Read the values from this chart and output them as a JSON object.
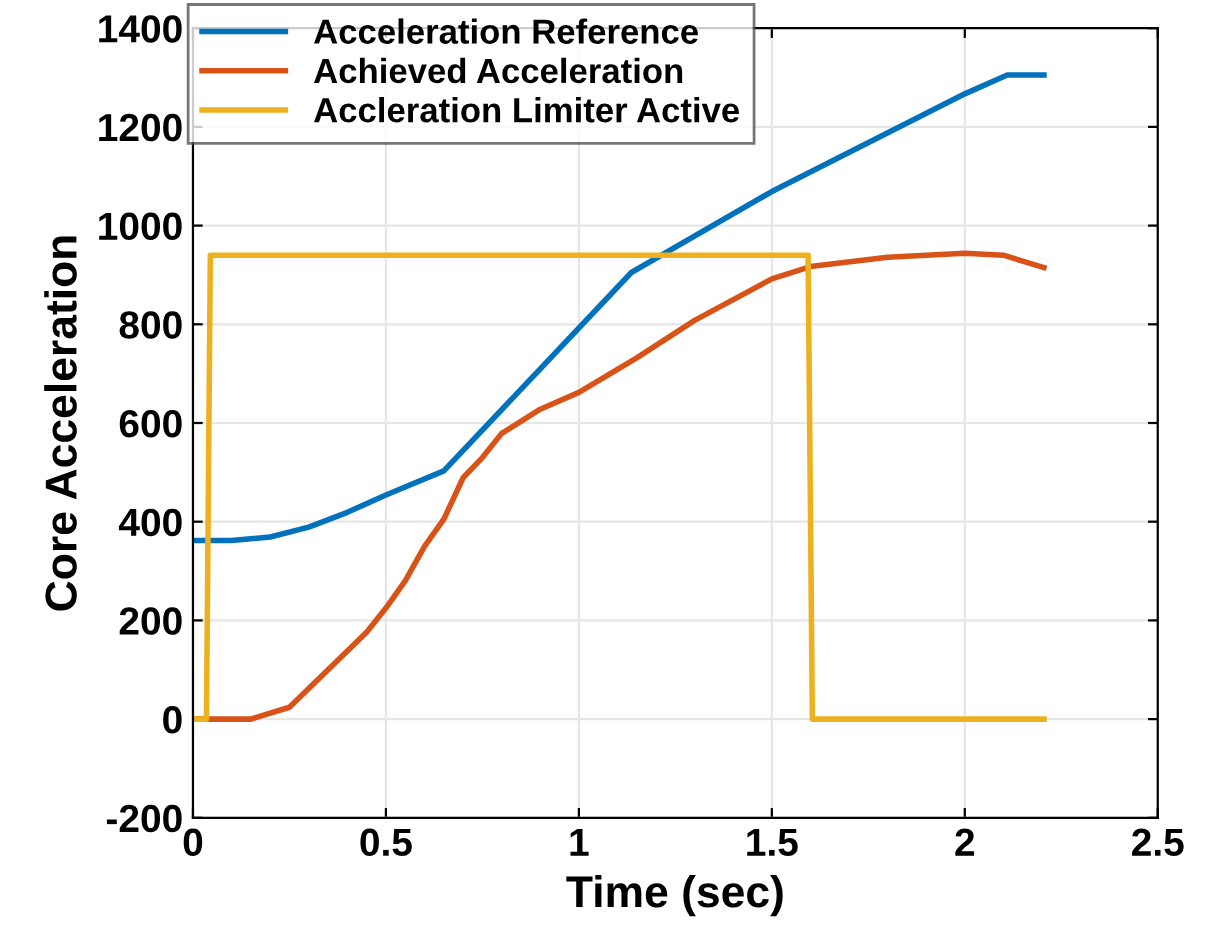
{
  "chart_data": {
    "type": "line",
    "xlabel": "Time (sec)",
    "ylabel": "Core Acceleration",
    "xlim": [
      0,
      2.5
    ],
    "xticks": [
      0,
      0.5,
      1,
      1.5,
      2,
      2.5
    ],
    "ylim": [
      -200,
      1400
    ],
    "yticks": [
      -200,
      0,
      200,
      400,
      600,
      800,
      1000,
      1200,
      1400
    ],
    "grid": true,
    "legend": "top left",
    "line_style": "solid",
    "marker": "none",
    "series": [
      {
        "name": "Acceleration Reference",
        "color": "#0072bd",
        "x": [
          0,
          0.1,
          0.2,
          0.3,
          0.4,
          0.5,
          0.65,
          1.136,
          1.5,
          2.0,
          2.11,
          2.205
        ],
        "values": [
          362,
          362,
          369,
          389,
          419,
          454,
          503,
          905,
          1069,
          1267,
          1305,
          1305
        ]
      },
      {
        "name": "Achieved Acceleration",
        "color": "#d95319",
        "x": [
          0,
          0.15,
          0.25,
          0.35,
          0.45,
          0.5,
          0.55,
          0.6,
          0.65,
          0.7,
          0.75,
          0.8,
          0.9,
          1.0,
          1.15,
          1.3,
          1.5,
          1.6,
          1.8,
          2.0,
          2.1,
          2.205
        ],
        "values": [
          0,
          0,
          24,
          100,
          176,
          225,
          280,
          350,
          405,
          489,
          530,
          579,
          628,
          662,
          732,
          808,
          892,
          917,
          936,
          944,
          940,
          915
        ]
      },
      {
        "name": "Accleration Limiter Active",
        "color": "#edb120",
        "x": [
          0,
          0.035,
          0.045,
          1.594,
          1.605,
          2.205
        ],
        "values": [
          0,
          0,
          940,
          940,
          0,
          0
        ]
      }
    ]
  }
}
